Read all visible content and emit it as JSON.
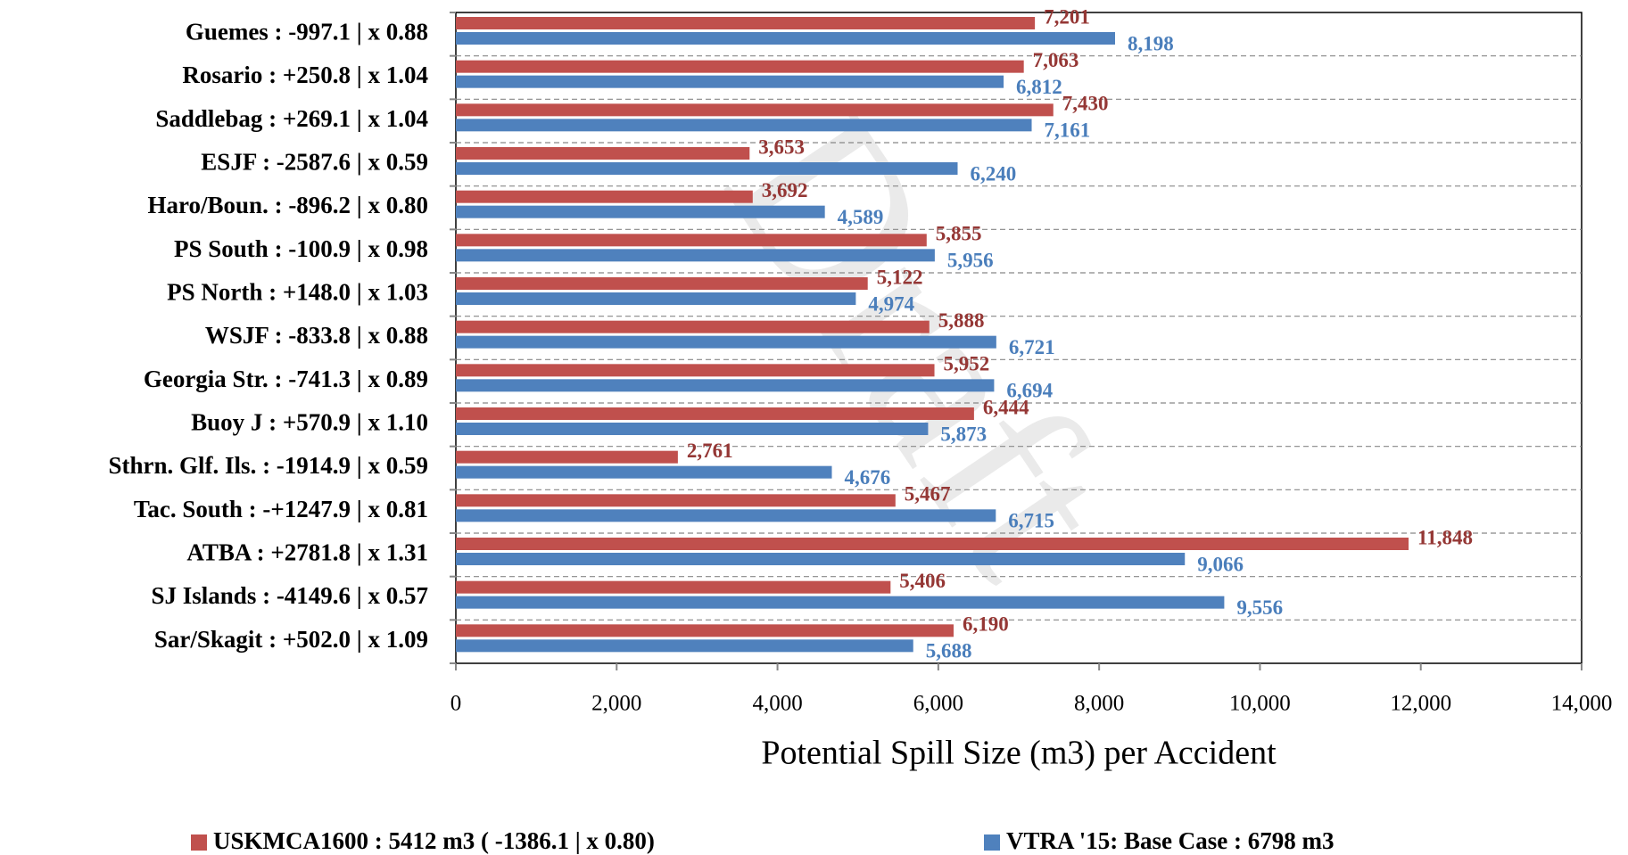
{
  "chart_data": {
    "type": "hbar",
    "watermark": "Draft",
    "x_label": "Potential Spill Size (m3) per Accident",
    "categories": [
      "Guemes : -997.1 |  x 0.88",
      "Rosario : +250.8 |  x 1.04",
      "Saddlebag : +269.1 |  x 1.04",
      "ESJF : -2587.6 |  x 0.59",
      "Haro/Boun. : -896.2 |  x 0.80",
      "PS South : -100.9 |  x 0.98",
      "PS North : +148.0 |  x 1.03",
      "WSJF : -833.8 |  x 0.88",
      "Georgia Str. : -741.3 |  x 0.89",
      "Buoy J : +570.9 |  x 1.10",
      "Sthrn. Glf. Ils. : -1914.9 |  x 0.59",
      "Tac. South : -+1247.9 |  x 0.81",
      "ATBA : +2781.8 |  x 1.31",
      "SJ Islands : -4149.6 |  x 0.57",
      "Sar/Skagit : +502.0 |  x 1.09"
    ],
    "series": [
      {
        "name": "USKMCA1600 : 5412 m3 ( -1386.1 |  x 0.80)",
        "color": "#c0504d",
        "label_color": "#953735",
        "values": [
          7201,
          7063,
          7430,
          3653,
          3692,
          5855,
          5122,
          5888,
          5952,
          6444,
          2761,
          5467,
          11848,
          5406,
          6190
        ],
        "value_labels": [
          "7,201",
          "7,063",
          "7,430",
          "3,653",
          "3,692",
          "5,855",
          "5,122",
          "5,888",
          "5,952",
          "6,444",
          "2,761",
          "5,467",
          "11,848",
          "5,406",
          "6,190"
        ]
      },
      {
        "name": "VTRA '15: Base Case : 6798 m3",
        "color": "#4f81bd",
        "label_color": "#4a7ebb",
        "values": [
          8198,
          6812,
          7161,
          6240,
          4589,
          5956,
          4974,
          6721,
          6694,
          5873,
          4676,
          6715,
          9066,
          9556,
          5688
        ],
        "value_labels": [
          "8,198",
          "6,812",
          "7,161",
          "6,240",
          "4,589",
          "5,956",
          "4,974",
          "6,721",
          "6,694",
          "5,873",
          "4,676",
          "6,715",
          "9,066",
          "9,556",
          "5,688"
        ]
      }
    ],
    "xlim": [
      0,
      14000
    ],
    "xticks": [
      0,
      {
        "value": 2000,
        "label": "2,000"
      },
      {
        "value": 4000,
        "label": "4,000"
      },
      {
        "value": 6000,
        "label": "6,000"
      },
      {
        "value": 8000,
        "label": "8,000"
      },
      {
        "value": 10000,
        "label": "10,000"
      },
      {
        "value": 12000,
        "label": "12,000"
      },
      {
        "value": 14000,
        "label": "14,000"
      }
    ]
  }
}
